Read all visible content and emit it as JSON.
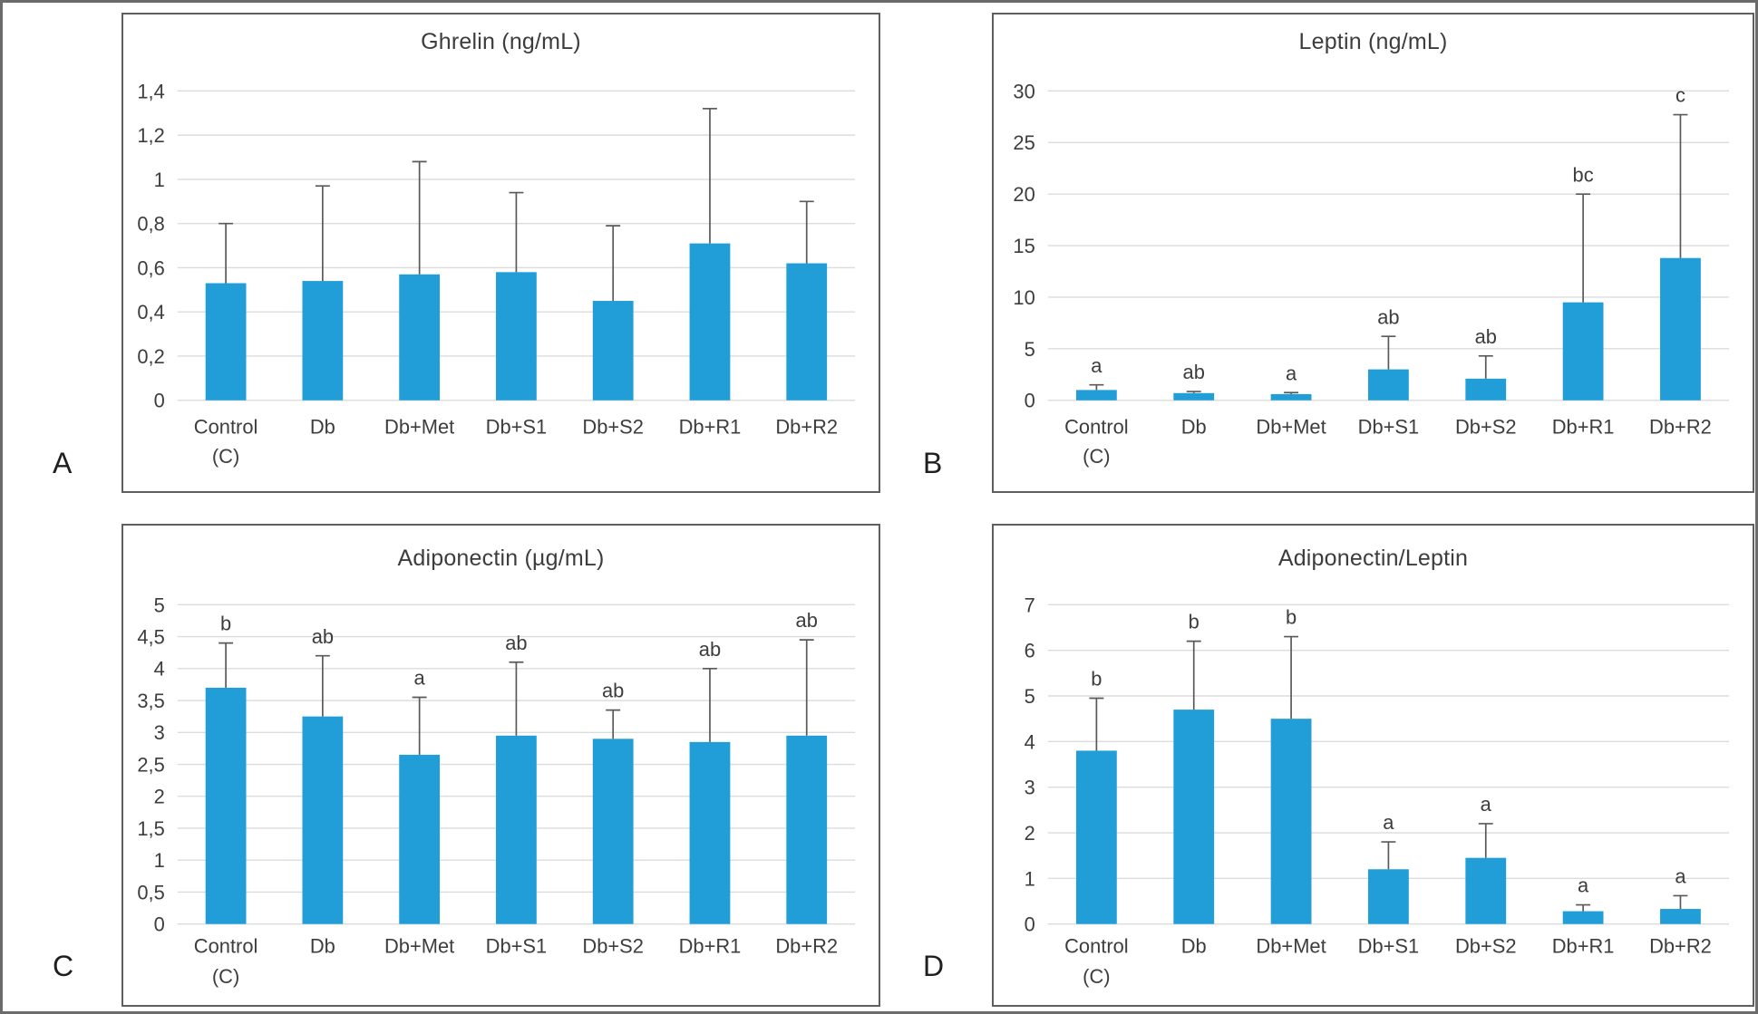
{
  "colors": {
    "bar": "#219dd8",
    "gridline": "#dcdcdc",
    "error_bar": "#595959",
    "text": "#3d3d3d",
    "panel_border": "#5f5f5f",
    "outer_border": "#6b6b6b"
  },
  "chart_data": [
    {
      "type": "bar",
      "panel_letter": "A",
      "title": "Ghrelin (ng/mL)",
      "xlabel": "",
      "ylabel": "",
      "grid": true,
      "legend": "none",
      "decimal_style": "comma",
      "categories": [
        [
          "Control",
          "(C)"
        ],
        [
          "Db"
        ],
        [
          "Db+Met"
        ],
        [
          "Db+S1"
        ],
        [
          "Db+S2"
        ],
        [
          "Db+R1"
        ],
        [
          "Db+R2"
        ]
      ],
      "values": [
        0.53,
        0.54,
        0.57,
        0.58,
        0.45,
        0.71,
        0.62
      ],
      "error_bar_tops": [
        0.8,
        0.97,
        1.08,
        0.94,
        0.79,
        1.32,
        0.9
      ],
      "sig_letters": [
        "",
        "",
        "",
        "",
        "",
        "",
        ""
      ],
      "ylim": [
        0,
        1.4
      ],
      "yticks": {
        "values": [
          0,
          0.2,
          0.4,
          0.6,
          0.8,
          1,
          1.2,
          1.4
        ],
        "labels": [
          "0",
          "0,2",
          "0,4",
          "0,6",
          "0,8",
          "1",
          "1,2",
          "1,4"
        ]
      }
    },
    {
      "type": "bar",
      "panel_letter": "B",
      "title": "Leptin (ng/mL)",
      "xlabel": "",
      "ylabel": "",
      "grid": true,
      "legend": "none",
      "decimal_style": "comma",
      "categories": [
        [
          "Control",
          "(C)"
        ],
        [
          "Db"
        ],
        [
          "Db+Met"
        ],
        [
          "Db+S1"
        ],
        [
          "Db+S2"
        ],
        [
          "Db+R1"
        ],
        [
          "Db+R2"
        ]
      ],
      "values": [
        1.0,
        0.7,
        0.6,
        3.0,
        2.1,
        9.5,
        13.8
      ],
      "error_bar_tops": [
        1.5,
        0.85,
        0.75,
        6.2,
        4.3,
        20.0,
        27.7
      ],
      "sig_letters": [
        "a",
        "ab",
        "a",
        "ab",
        "ab",
        "bc",
        "c"
      ],
      "ylim": [
        0,
        30
      ],
      "yticks": {
        "values": [
          0,
          5,
          10,
          15,
          20,
          25,
          30
        ],
        "labels": [
          "0",
          "5",
          "10",
          "15",
          "20",
          "25",
          "30"
        ]
      }
    },
    {
      "type": "bar",
      "panel_letter": "C",
      "title": "Adiponectin (µg/mL)",
      "xlabel": "",
      "ylabel": "",
      "grid": true,
      "legend": "none",
      "decimal_style": "comma",
      "categories": [
        [
          "Control",
          "(C)"
        ],
        [
          "Db"
        ],
        [
          "Db+Met"
        ],
        [
          "Db+S1"
        ],
        [
          "Db+S2"
        ],
        [
          "Db+R1"
        ],
        [
          "Db+R2"
        ]
      ],
      "values": [
        3.7,
        3.25,
        2.65,
        2.95,
        2.9,
        2.85,
        2.95
      ],
      "error_bar_tops": [
        4.4,
        4.2,
        3.55,
        4.1,
        3.35,
        4.0,
        4.45
      ],
      "sig_letters": [
        "b",
        "ab",
        "a",
        "ab",
        "ab",
        "ab",
        "ab"
      ],
      "ylim": [
        0,
        5
      ],
      "yticks": {
        "values": [
          0,
          0.5,
          1,
          1.5,
          2,
          2.5,
          3,
          3.5,
          4,
          4.5,
          5
        ],
        "labels": [
          "0",
          "0,5",
          "1",
          "1,5",
          "2",
          "2,5",
          "3",
          "3,5",
          "4",
          "4,5",
          "5"
        ]
      }
    },
    {
      "type": "bar",
      "panel_letter": "D",
      "title": "Adiponectin/Leptin",
      "xlabel": "",
      "ylabel": "",
      "grid": true,
      "legend": "none",
      "decimal_style": "comma",
      "categories": [
        [
          "Control",
          "(C)"
        ],
        [
          "Db"
        ],
        [
          "Db+Met"
        ],
        [
          "Db+S1"
        ],
        [
          "Db+S2"
        ],
        [
          "Db+R1"
        ],
        [
          "Db+R2"
        ]
      ],
      "values": [
        3.8,
        4.7,
        4.5,
        1.2,
        1.45,
        0.28,
        0.33
      ],
      "error_bar_tops": [
        4.95,
        6.2,
        6.3,
        1.8,
        2.2,
        0.42,
        0.62
      ],
      "sig_letters": [
        "b",
        "b",
        "b",
        "a",
        "a",
        "a",
        "a"
      ],
      "ylim": [
        0,
        7
      ],
      "yticks": {
        "values": [
          0,
          1,
          2,
          3,
          4,
          5,
          6,
          7
        ],
        "labels": [
          "0",
          "1",
          "2",
          "3",
          "4",
          "5",
          "6",
          "7"
        ]
      }
    }
  ]
}
